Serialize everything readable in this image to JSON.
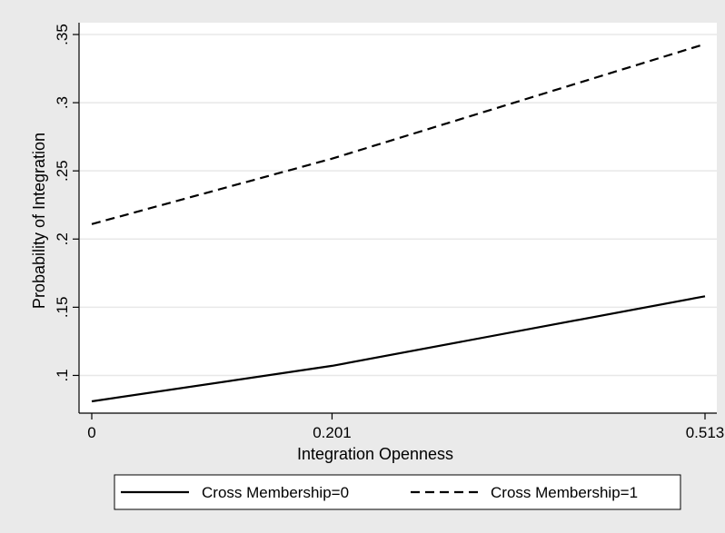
{
  "chart_data": {
    "type": "line",
    "title": "",
    "xlabel": "Integration Openness",
    "ylabel": "Probability of Integration",
    "x": [
      0,
      0.201,
      0.513
    ],
    "x_tick_labels": [
      "0",
      "0.201",
      "0.513"
    ],
    "y_ticks": [
      0.1,
      0.15,
      0.2,
      0.25,
      0.3,
      0.35
    ],
    "y_tick_labels": [
      ".1",
      ".15",
      ".2",
      ".25",
      ".3",
      ".35"
    ],
    "xlim": [
      0,
      0.513
    ],
    "ylim": [
      0.075,
      0.35
    ],
    "grid": true,
    "legend_position": "bottom",
    "series": [
      {
        "name": "Cross Membership=0",
        "values": [
          0.081,
          0.107,
          0.158
        ],
        "style": "solid",
        "color": "#000000"
      },
      {
        "name": "Cross Membership=1",
        "values": [
          0.211,
          0.259,
          0.343
        ],
        "style": "dashed",
        "color": "#000000"
      }
    ],
    "colors": {
      "background": "#eaeaea",
      "plot_area": "#ffffff",
      "grid": "#e8e8e8"
    }
  }
}
